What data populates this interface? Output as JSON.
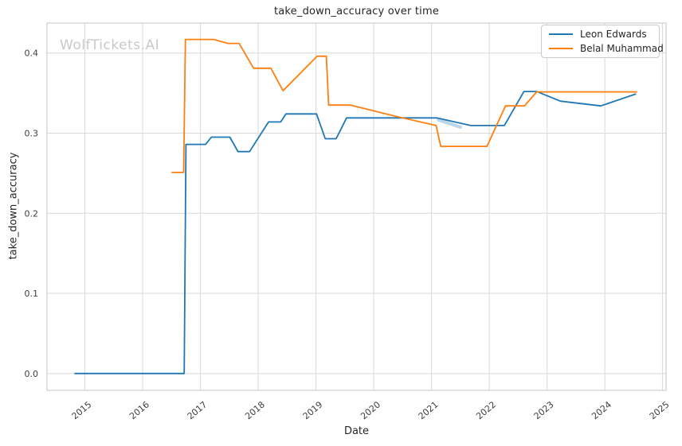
{
  "title": "take_down_accuracy over time",
  "watermark": "WolfTickets.AI",
  "chart_data": {
    "type": "line",
    "title": "take_down_accuracy over time",
    "xlabel": "Date",
    "ylabel": "take_down_accuracy",
    "xlim": [
      2014.345,
      2025.06
    ],
    "ylim": [
      -0.021,
      0.4374
    ],
    "xticks": [
      2015,
      2016,
      2017,
      2018,
      2019,
      2020,
      2021,
      2022,
      2023,
      2024,
      2025
    ],
    "yticks": [
      0.0,
      0.1,
      0.2,
      0.3,
      0.4
    ],
    "ytick_labels": [
      "0.0",
      "0.1",
      "0.2",
      "0.3",
      "0.4"
    ],
    "grid": true,
    "grid_color": "#d9d9d9",
    "spine_color": "#c4c4c4",
    "tick_text_color": "#3d3d3d",
    "legend_position": "upper right",
    "series": [
      {
        "name": "Leon Edwards",
        "color": "#1f77b4",
        "points": [
          [
            2014.82,
            0.0
          ],
          [
            2016.72,
            0.0
          ],
          [
            2016.75,
            0.286
          ],
          [
            2017.09,
            0.286
          ],
          [
            2017.19,
            0.295
          ],
          [
            2017.51,
            0.295
          ],
          [
            2017.65,
            0.277
          ],
          [
            2017.85,
            0.277
          ],
          [
            2018.18,
            0.314
          ],
          [
            2018.39,
            0.314
          ],
          [
            2018.48,
            0.324
          ],
          [
            2019.01,
            0.324
          ],
          [
            2019.16,
            0.293
          ],
          [
            2019.35,
            0.293
          ],
          [
            2019.53,
            0.319
          ],
          [
            2021.09,
            0.319
          ],
          [
            2021.68,
            0.3095
          ],
          [
            2022.26,
            0.3095
          ],
          [
            2022.6,
            0.352
          ],
          [
            2022.82,
            0.352
          ],
          [
            2023.23,
            0.34
          ],
          [
            2023.46,
            0.338
          ],
          [
            2023.93,
            0.334
          ],
          [
            2024.54,
            0.349
          ]
        ]
      },
      {
        "name": "Belal Muhammad",
        "color": "#ff7f0e",
        "points": [
          [
            2016.5,
            0.251
          ],
          [
            2016.71,
            0.251
          ],
          [
            2016.74,
            0.417
          ],
          [
            2017.23,
            0.417
          ],
          [
            2017.48,
            0.412
          ],
          [
            2017.67,
            0.412
          ],
          [
            2017.92,
            0.381
          ],
          [
            2018.22,
            0.381
          ],
          [
            2018.43,
            0.353
          ],
          [
            2019.02,
            0.396
          ],
          [
            2019.18,
            0.396
          ],
          [
            2019.22,
            0.335
          ],
          [
            2019.6,
            0.335
          ],
          [
            2020.35,
            0.3215
          ],
          [
            2021.08,
            0.3095
          ],
          [
            2021.16,
            0.2835
          ],
          [
            2021.96,
            0.2835
          ],
          [
            2022.28,
            0.334
          ],
          [
            2022.61,
            0.334
          ],
          [
            2022.82,
            0.3515
          ],
          [
            2024.56,
            0.3515
          ]
        ]
      }
    ],
    "artifact_smudge": {
      "color": "#1f77b4",
      "opacity": 0.3,
      "points": [
        [
          2021.12,
          0.3165
        ],
        [
          2021.5,
          0.3075
        ]
      ]
    }
  }
}
